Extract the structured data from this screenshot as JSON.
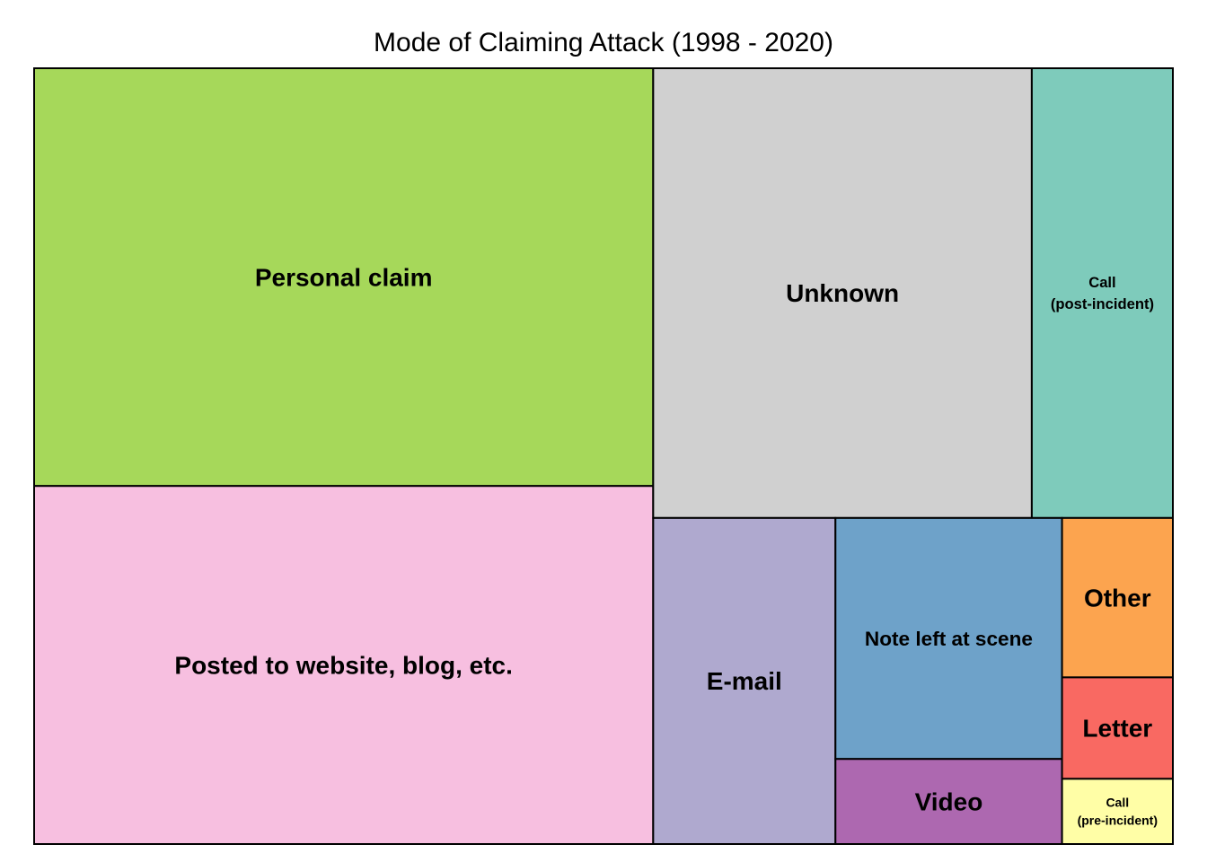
{
  "chart_data": {
    "type": "treemap",
    "title": "Mode of Claiming Attack (1998 - 2020)",
    "items": [
      {
        "label": "Personal claim",
        "lines": [
          "Personal claim"
        ],
        "value": 322,
        "color": "#a6d85a"
      },
      {
        "label": "Posted to website, blog, etc.",
        "lines": [
          "Posted to website, blog, etc."
        ],
        "value": 276,
        "color": "#f7bfe0"
      },
      {
        "label": "Unknown",
        "lines": [
          "Unknown"
        ],
        "value": 212,
        "color": "#d0d0d0"
      },
      {
        "label": "Call (post-incident)",
        "lines": [
          "Call",
          "(post-incident)"
        ],
        "value": 79,
        "color": "#7ecbbb"
      },
      {
        "label": "E-mail",
        "lines": [
          "E-mail"
        ],
        "value": 74,
        "color": "#afa9cf"
      },
      {
        "label": "Note left at scene",
        "lines": [
          "Note left at scene"
        ],
        "value": 68,
        "color": "#6ea2c9"
      },
      {
        "label": "Video",
        "lines": [
          "Video"
        ],
        "value": 24,
        "color": "#ad68b0"
      },
      {
        "label": "Other",
        "lines": [
          "Other"
        ],
        "value": 22,
        "color": "#fca44f"
      },
      {
        "label": "Letter",
        "lines": [
          "Letter"
        ],
        "value": 14,
        "color": "#f96962"
      },
      {
        "label": "Call (pre-incident)",
        "lines": [
          "Call",
          "(pre-incident)"
        ],
        "value": 9,
        "color": "#fffea6"
      }
    ]
  }
}
